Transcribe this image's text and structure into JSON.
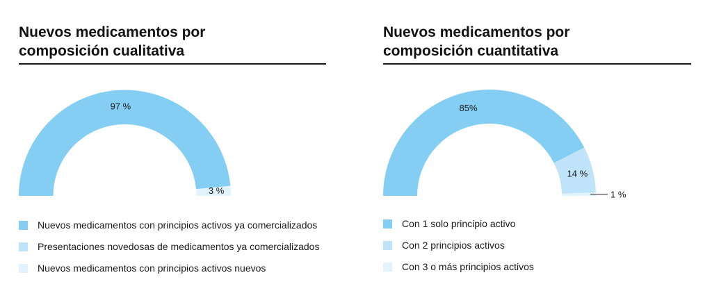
{
  "chart_data": [
    {
      "type": "pie",
      "variant": "half-donut",
      "title": [
        "Nuevos medicamentos por",
        "composición cualitativa"
      ],
      "categories": [
        "Nuevos medicamentos con principios activos ya comercializados",
        "Presentaciones novedosas de medicamentos ya comercializados",
        "Nuevos medicamentos con principios activos nuevos"
      ],
      "values": [
        97,
        0,
        3
      ],
      "unit": "%",
      "data_labels": [
        "97 %",
        "",
        "3 %"
      ],
      "colors": [
        "#84cef3",
        "#bfe3f8",
        "#e3f3fd"
      ],
      "legend": "bottom"
    },
    {
      "type": "pie",
      "variant": "half-donut",
      "title": [
        "Nuevos medicamentos por",
        "composición cuantitativa"
      ],
      "categories": [
        "Con 1 solo principio activo",
        "Con 2 principios activos",
        "Con 3 o más principios activos"
      ],
      "values": [
        85,
        14,
        1
      ],
      "unit": "%",
      "data_labels": [
        "85%",
        "14 %",
        "1 %"
      ],
      "colors": [
        "#84cef3",
        "#bfe3f8",
        "#e3f3fd"
      ],
      "legend": "bottom"
    }
  ]
}
